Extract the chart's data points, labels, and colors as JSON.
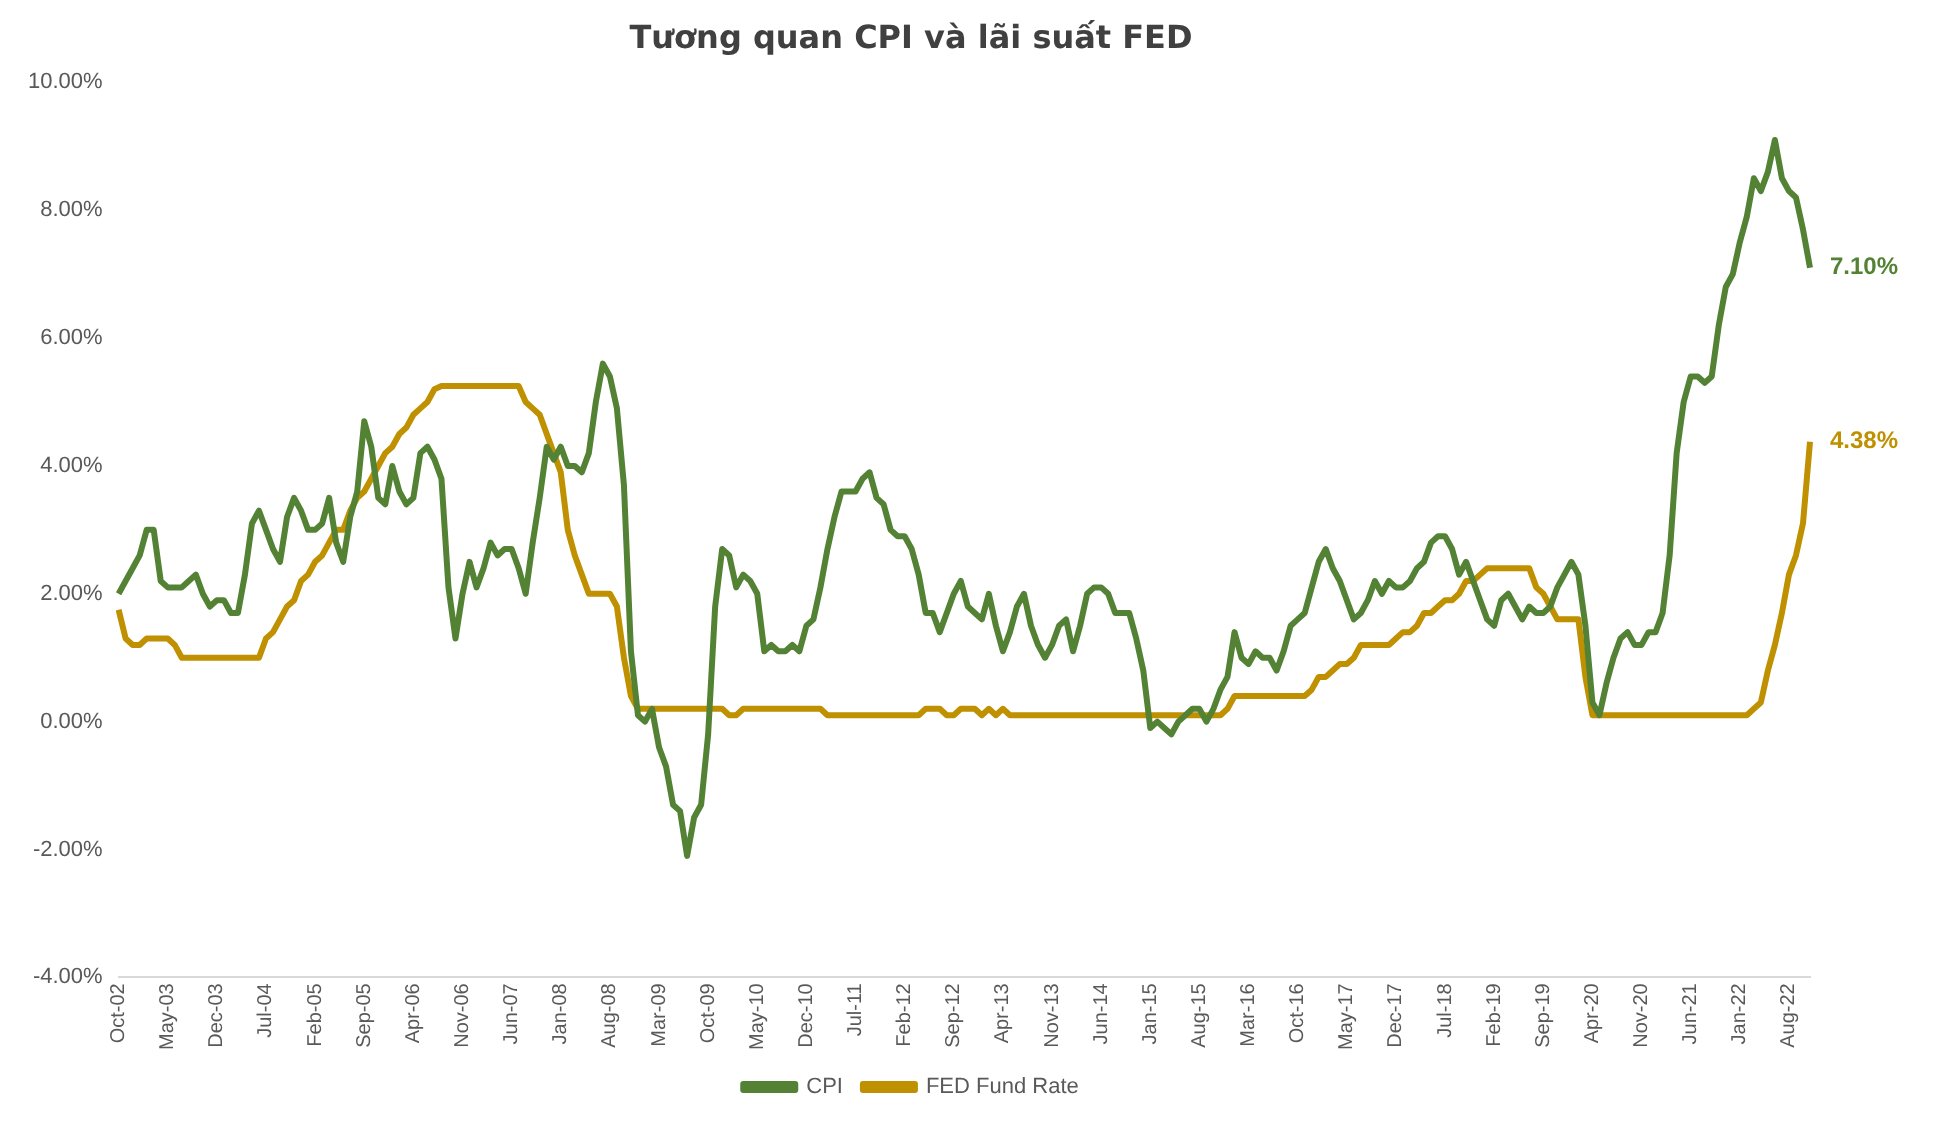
{
  "chart_data": {
    "type": "line",
    "title": "Tương quan CPI và lãi suất FED",
    "categories": [
      "Oct-02",
      null,
      null,
      null,
      null,
      null,
      null,
      "May-03",
      null,
      null,
      null,
      null,
      null,
      null,
      "Dec-03",
      null,
      null,
      null,
      null,
      null,
      null,
      "Jul-04",
      null,
      null,
      null,
      null,
      null,
      null,
      "Feb-05",
      null,
      null,
      null,
      null,
      null,
      null,
      "Sep-05",
      null,
      null,
      null,
      null,
      null,
      null,
      "Apr-06",
      null,
      null,
      null,
      null,
      null,
      null,
      "Nov-06",
      null,
      null,
      null,
      null,
      null,
      null,
      "Jun-07",
      null,
      null,
      null,
      null,
      null,
      null,
      "Jan-08",
      null,
      null,
      null,
      null,
      null,
      null,
      "Aug-08",
      null,
      null,
      null,
      null,
      null,
      null,
      "Mar-09",
      null,
      null,
      null,
      null,
      null,
      null,
      "Oct-09",
      null,
      null,
      null,
      null,
      null,
      null,
      "May-10",
      null,
      null,
      null,
      null,
      null,
      null,
      "Dec-10",
      null,
      null,
      null,
      null,
      null,
      null,
      "Jul-11",
      null,
      null,
      null,
      null,
      null,
      null,
      "Feb-12",
      null,
      null,
      null,
      null,
      null,
      null,
      "Sep-12",
      null,
      null,
      null,
      null,
      null,
      null,
      "Apr-13",
      null,
      null,
      null,
      null,
      null,
      null,
      "Nov-13",
      null,
      null,
      null,
      null,
      null,
      null,
      "Jun-14",
      null,
      null,
      null,
      null,
      null,
      null,
      "Jan-15",
      null,
      null,
      null,
      null,
      null,
      null,
      "Aug-15",
      null,
      null,
      null,
      null,
      null,
      null,
      "Mar-16",
      null,
      null,
      null,
      null,
      null,
      null,
      "Oct-16",
      null,
      null,
      null,
      null,
      null,
      null,
      "May-17",
      null,
      null,
      null,
      null,
      null,
      null,
      "Dec-17",
      null,
      null,
      null,
      null,
      null,
      null,
      "Jul-18",
      null,
      null,
      null,
      null,
      null,
      null,
      "Feb-19",
      null,
      null,
      null,
      null,
      null,
      null,
      "Sep-19",
      null,
      null,
      null,
      null,
      null,
      null,
      "Apr-20",
      null,
      null,
      null,
      null,
      null,
      null,
      "Nov-20",
      null,
      null,
      null,
      null,
      null,
      null,
      "Jun-21",
      null,
      null,
      null,
      null,
      null,
      null,
      "Jan-22",
      null,
      null,
      null,
      null,
      null,
      null,
      "Aug-22",
      null,
      null,
      null
    ],
    "series": [
      {
        "name": "CPI",
        "color": "#548235",
        "values": [
          2.0,
          2.2,
          2.4,
          2.6,
          3.0,
          3.0,
          2.2,
          2.1,
          2.1,
          2.1,
          2.2,
          2.3,
          2.0,
          1.8,
          1.9,
          1.9,
          1.7,
          1.7,
          2.3,
          3.1,
          3.3,
          3.0,
          2.7,
          2.5,
          3.2,
          3.5,
          3.3,
          3.0,
          3.0,
          3.1,
          3.5,
          2.8,
          2.5,
          3.2,
          3.6,
          4.7,
          4.3,
          3.5,
          3.4,
          4.0,
          3.6,
          3.4,
          3.5,
          4.2,
          4.3,
          4.1,
          3.8,
          2.1,
          1.3,
          2.0,
          2.5,
          2.1,
          2.4,
          2.8,
          2.6,
          2.7,
          2.7,
          2.4,
          2.0,
          2.8,
          3.5,
          4.3,
          4.1,
          4.3,
          4.0,
          4.0,
          3.9,
          4.2,
          5.0,
          5.6,
          5.4,
          4.9,
          3.7,
          1.1,
          0.1,
          0.0,
          0.2,
          -0.4,
          -0.7,
          -1.3,
          -1.4,
          -2.1,
          -1.5,
          -1.3,
          -0.2,
          1.8,
          2.7,
          2.6,
          2.1,
          2.3,
          2.2,
          2.0,
          1.1,
          1.2,
          1.1,
          1.1,
          1.2,
          1.1,
          1.5,
          1.6,
          2.1,
          2.7,
          3.2,
          3.6,
          3.6,
          3.6,
          3.8,
          3.9,
          3.5,
          3.4,
          3.0,
          2.9,
          2.9,
          2.7,
          2.3,
          1.7,
          1.7,
          1.4,
          1.7,
          2.0,
          2.2,
          1.8,
          1.7,
          1.6,
          2.0,
          1.5,
          1.1,
          1.4,
          1.8,
          2.0,
          1.5,
          1.2,
          1.0,
          1.2,
          1.5,
          1.6,
          1.1,
          1.5,
          2.0,
          2.1,
          2.1,
          2.0,
          1.7,
          1.7,
          1.7,
          1.3,
          0.8,
          -0.1,
          0.0,
          -0.1,
          -0.2,
          0.0,
          0.1,
          0.2,
          0.2,
          0.0,
          0.2,
          0.5,
          0.7,
          1.4,
          1.0,
          0.9,
          1.1,
          1.0,
          1.0,
          0.8,
          1.1,
          1.5,
          1.6,
          1.7,
          2.1,
          2.5,
          2.7,
          2.4,
          2.2,
          1.9,
          1.6,
          1.7,
          1.9,
          2.2,
          2.0,
          2.2,
          2.1,
          2.1,
          2.2,
          2.4,
          2.5,
          2.8,
          2.9,
          2.9,
          2.7,
          2.3,
          2.5,
          2.2,
          1.9,
          1.6,
          1.5,
          1.9,
          2.0,
          1.8,
          1.6,
          1.8,
          1.7,
          1.7,
          1.8,
          2.1,
          2.3,
          2.5,
          2.3,
          1.5,
          0.3,
          0.1,
          0.6,
          1.0,
          1.3,
          1.4,
          1.2,
          1.2,
          1.4,
          1.4,
          1.7,
          2.6,
          4.2,
          5.0,
          5.4,
          5.4,
          5.3,
          5.4,
          6.2,
          6.8,
          7.0,
          7.5,
          7.9,
          8.5,
          8.3,
          8.6,
          9.1,
          8.5,
          8.3,
          8.2,
          7.7,
          7.1
        ]
      },
      {
        "name": "FED Fund Rate",
        "color": "#bf9000",
        "values": [
          1.75,
          1.3,
          1.2,
          1.2,
          1.3,
          1.3,
          1.3,
          1.3,
          1.2,
          1.0,
          1.0,
          1.0,
          1.0,
          1.0,
          1.0,
          1.0,
          1.0,
          1.0,
          1.0,
          1.0,
          1.0,
          1.3,
          1.4,
          1.6,
          1.8,
          1.9,
          2.2,
          2.3,
          2.5,
          2.6,
          2.8,
          3.0,
          3.0,
          3.3,
          3.5,
          3.6,
          3.8,
          4.0,
          4.2,
          4.3,
          4.5,
          4.6,
          4.8,
          4.9,
          5.0,
          5.2,
          5.25,
          5.25,
          5.25,
          5.25,
          5.25,
          5.25,
          5.25,
          5.25,
          5.25,
          5.25,
          5.25,
          5.25,
          5.0,
          4.9,
          4.8,
          4.5,
          4.2,
          3.9,
          3.0,
          2.6,
          2.3,
          2.0,
          2.0,
          2.0,
          2.0,
          1.8,
          1.0,
          0.4,
          0.2,
          0.2,
          0.2,
          0.2,
          0.2,
          0.2,
          0.2,
          0.2,
          0.2,
          0.2,
          0.2,
          0.2,
          0.2,
          0.1,
          0.1,
          0.2,
          0.2,
          0.2,
          0.2,
          0.2,
          0.2,
          0.2,
          0.2,
          0.2,
          0.2,
          0.2,
          0.2,
          0.1,
          0.1,
          0.1,
          0.1,
          0.1,
          0.1,
          0.1,
          0.1,
          0.1,
          0.1,
          0.1,
          0.1,
          0.1,
          0.1,
          0.2,
          0.2,
          0.2,
          0.1,
          0.1,
          0.2,
          0.2,
          0.2,
          0.1,
          0.2,
          0.1,
          0.2,
          0.1,
          0.1,
          0.1,
          0.1,
          0.1,
          0.1,
          0.1,
          0.1,
          0.1,
          0.1,
          0.1,
          0.1,
          0.1,
          0.1,
          0.1,
          0.1,
          0.1,
          0.1,
          0.1,
          0.1,
          0.1,
          0.1,
          0.1,
          0.1,
          0.1,
          0.1,
          0.1,
          0.1,
          0.1,
          0.1,
          0.1,
          0.2,
          0.4,
          0.4,
          0.4,
          0.4,
          0.4,
          0.4,
          0.4,
          0.4,
          0.4,
          0.4,
          0.4,
          0.5,
          0.7,
          0.7,
          0.8,
          0.9,
          0.9,
          1.0,
          1.2,
          1.2,
          1.2,
          1.2,
          1.2,
          1.3,
          1.4,
          1.4,
          1.5,
          1.7,
          1.7,
          1.8,
          1.9,
          1.9,
          2.0,
          2.2,
          2.2,
          2.3,
          2.4,
          2.4,
          2.4,
          2.4,
          2.4,
          2.4,
          2.4,
          2.1,
          2.0,
          1.8,
          1.6,
          1.6,
          1.6,
          1.6,
          0.7,
          0.1,
          0.1,
          0.1,
          0.1,
          0.1,
          0.1,
          0.1,
          0.1,
          0.1,
          0.1,
          0.1,
          0.1,
          0.1,
          0.1,
          0.1,
          0.1,
          0.1,
          0.1,
          0.1,
          0.1,
          0.1,
          0.1,
          0.1,
          0.2,
          0.3,
          0.8,
          1.2,
          1.7,
          2.3,
          2.6,
          3.1,
          4.38
        ]
      }
    ],
    "ylim": [
      -4,
      10
    ],
    "yticks": [
      {
        "value": -4,
        "label": "-4.00%"
      },
      {
        "value": -2,
        "label": "-2.00%"
      },
      {
        "value": 0,
        "label": "0.00%"
      },
      {
        "value": 2,
        "label": "2.00%"
      },
      {
        "value": 4,
        "label": "4.00%"
      },
      {
        "value": 6,
        "label": "6.00%"
      },
      {
        "value": 8,
        "label": "8.00%"
      },
      {
        "value": 10,
        "label": "10.00%"
      }
    ],
    "annotations": [
      "7.10%",
      "4.38%"
    ],
    "grid": false,
    "legend": "bottom",
    "marker": "none",
    "line_style": "solid"
  }
}
